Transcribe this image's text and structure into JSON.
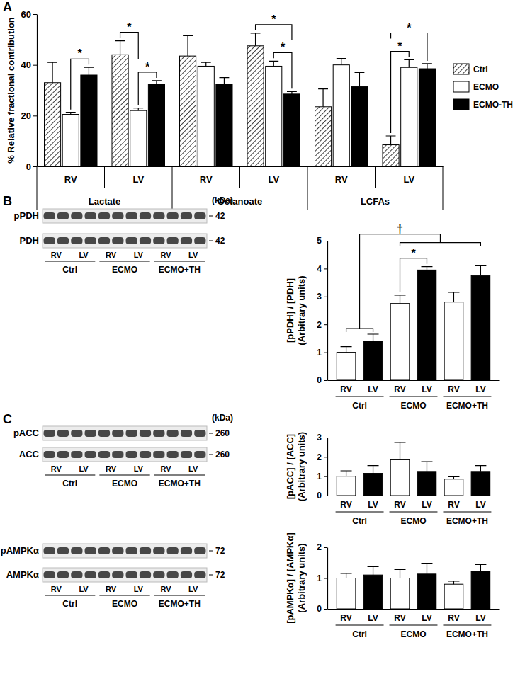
{
  "chart_data": [
    {
      "type": "bar",
      "panel": "A",
      "y_label": "% Relative fractional contribution",
      "categories": [
        "RV",
        "LV",
        "RV",
        "LV",
        "RV",
        "LV"
      ],
      "groups": [
        "Lactate",
        "Octanoate",
        "LCFAs"
      ],
      "ylim": [
        0,
        60
      ],
      "yticks": [
        0,
        20,
        40,
        60
      ],
      "legend": "right",
      "series": [
        {
          "name": "Ctrl",
          "color": "#404040",
          "values": [
            33,
            44,
            43.5,
            47.5,
            23.5,
            8.5
          ],
          "errors": [
            8,
            5.5,
            8,
            5,
            7,
            3.5
          ]
        },
        {
          "name": "ECMO",
          "color": "#ffffff",
          "values": [
            20.5,
            22,
            39.5,
            39.5,
            40,
            39
          ],
          "errors": [
            0.8,
            1,
            1.5,
            2,
            2.5,
            3
          ]
        },
        {
          "name": "ECMO-TH",
          "color": "#000000",
          "values": [
            36,
            32.5,
            32.5,
            28.5,
            31.5,
            38.5
          ],
          "errors": [
            3,
            1.3,
            2.5,
            1,
            5.5,
            2
          ]
        }
      ],
      "annotations": [
        {
          "category": 0,
          "left": [
            1,
            1
          ],
          "right": [
            2,
            2
          ],
          "label": "*"
        },
        {
          "category": 1,
          "left": [
            1,
            1
          ],
          "right": [
            2,
            2
          ],
          "label": "*"
        },
        {
          "category": 1,
          "left": [
            0,
            0
          ],
          "right": [
            1,
            1
          ],
          "label": "*"
        },
        {
          "category": 3,
          "left": [
            1,
            1
          ],
          "right": [
            2,
            2
          ],
          "label": "*"
        },
        {
          "category": 3,
          "left": [
            0,
            0
          ],
          "right": [
            2,
            2
          ],
          "label": "*"
        },
        {
          "category": 5,
          "left": [
            0,
            0
          ],
          "right": [
            1,
            1
          ],
          "label": "*"
        },
        {
          "category": 5,
          "left": [
            0,
            0
          ],
          "right": [
            2,
            2
          ],
          "label": "*"
        }
      ]
    },
    {
      "type": "blot",
      "panel": "B",
      "unit": "(kDa)",
      "rows": [
        {
          "label": "pPDH",
          "kda": 42
        },
        {
          "label": "PDH",
          "kda": 42
        }
      ],
      "lane_labels": [
        "RV",
        "LV",
        "RV",
        "LV",
        "RV",
        "LV"
      ],
      "groups": [
        "Ctrl",
        "ECMO",
        "ECMO+TH"
      ]
    },
    {
      "type": "bar",
      "y_label": [
        "[pPDH] / [PDH]",
        "(Arbitrary units)"
      ],
      "categories": [
        "RV",
        "LV",
        "RV",
        "LV",
        "RV",
        "LV"
      ],
      "groups": [
        "Ctrl",
        "ECMO",
        "ECMO+TH"
      ],
      "values": [
        1.0,
        1.4,
        2.75,
        3.95,
        2.8,
        3.75
      ],
      "errors": [
        0.2,
        0.25,
        0.3,
        0.12,
        0.35,
        0.35
      ],
      "colors": [
        "#ffffff",
        "#000000",
        "#ffffff",
        "#000000",
        "#ffffff",
        "#000000"
      ],
      "ylim": [
        0,
        5
      ],
      "yticks": [
        0,
        1,
        2,
        3,
        4,
        5
      ],
      "annotations": [
        {
          "left": [
            2,
            2
          ],
          "right": [
            3,
            3
          ],
          "label": "*"
        },
        {
          "left": [
            0,
            1
          ],
          "right": [
            2,
            5
          ],
          "label": "†"
        }
      ]
    },
    {
      "type": "blot",
      "panel": "C",
      "unit": "(kDa)",
      "rows": [
        {
          "label": "pACC",
          "kda": 260
        },
        {
          "label": "ACC",
          "kda": 260
        }
      ],
      "lane_labels": [
        "RV",
        "LV",
        "RV",
        "LV",
        "RV",
        "LV"
      ],
      "groups": [
        "Ctrl",
        "ECMO",
        "ECMO+TH"
      ]
    },
    {
      "type": "bar",
      "y_label": [
        "[pACC] / [ACC]",
        "(Arbitrary units)"
      ],
      "categories": [
        "RV",
        "LV",
        "RV",
        "LV",
        "RV",
        "LV"
      ],
      "groups": [
        "Ctrl",
        "ECMO",
        "ECMO+TH"
      ],
      "values": [
        1.0,
        1.15,
        1.85,
        1.25,
        0.85,
        1.25
      ],
      "errors": [
        0.28,
        0.4,
        0.9,
        0.5,
        0.12,
        0.3
      ],
      "colors": [
        "#ffffff",
        "#000000",
        "#ffffff",
        "#000000",
        "#ffffff",
        "#000000"
      ],
      "ylim": [
        0,
        3
      ],
      "yticks": [
        0,
        1,
        2,
        3
      ]
    },
    {
      "type": "blot",
      "rows": [
        {
          "label": "pAMPKα",
          "kda": 72
        },
        {
          "label": "AMPKα",
          "kda": 72
        }
      ],
      "lane_labels": [
        "RV",
        "LV",
        "RV",
        "LV",
        "RV",
        "LV"
      ],
      "groups": [
        "Ctrl",
        "ECMO",
        "ECMO+TH"
      ]
    },
    {
      "type": "bar",
      "y_label": [
        "[pAMPKα] / [AMPKα]",
        "(Arbitrary units)"
      ],
      "categories": [
        "RV",
        "LV",
        "RV",
        "LV",
        "RV",
        "LV"
      ],
      "groups": [
        "Ctrl",
        "ECMO",
        "ECMO+TH"
      ],
      "values": [
        1.0,
        1.1,
        1.0,
        1.13,
        0.8,
        1.22
      ],
      "errors": [
        0.15,
        0.27,
        0.28,
        0.35,
        0.1,
        0.22
      ],
      "colors": [
        "#ffffff",
        "#000000",
        "#ffffff",
        "#000000",
        "#ffffff",
        "#000000"
      ],
      "ylim": [
        0,
        2
      ],
      "yticks": [
        0,
        1,
        2
      ]
    }
  ]
}
